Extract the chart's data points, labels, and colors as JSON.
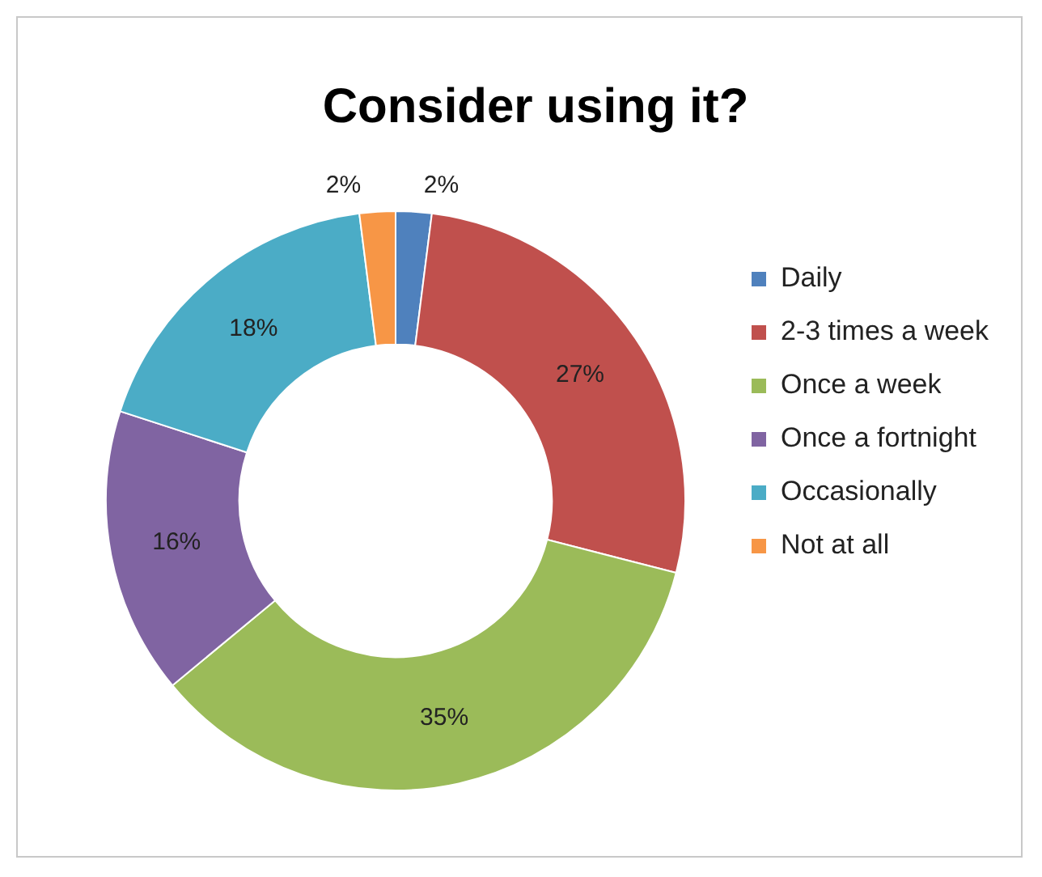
{
  "chart_data": {
    "type": "donut",
    "title": "Consider using it?",
    "categories": [
      "Daily",
      "2-3 times a week",
      "Once a week",
      "Once a fortnight",
      "Occasionally",
      "Not at all"
    ],
    "values": [
      2,
      27,
      35,
      16,
      18,
      2
    ],
    "colors": [
      "#4f81bd",
      "#c0504d",
      "#9bbb59",
      "#8064a2",
      "#4bacc6",
      "#f79646"
    ],
    "value_labels": [
      "2%",
      "27%",
      "35%",
      "16%",
      "18%",
      "2%"
    ],
    "legend": "right"
  }
}
